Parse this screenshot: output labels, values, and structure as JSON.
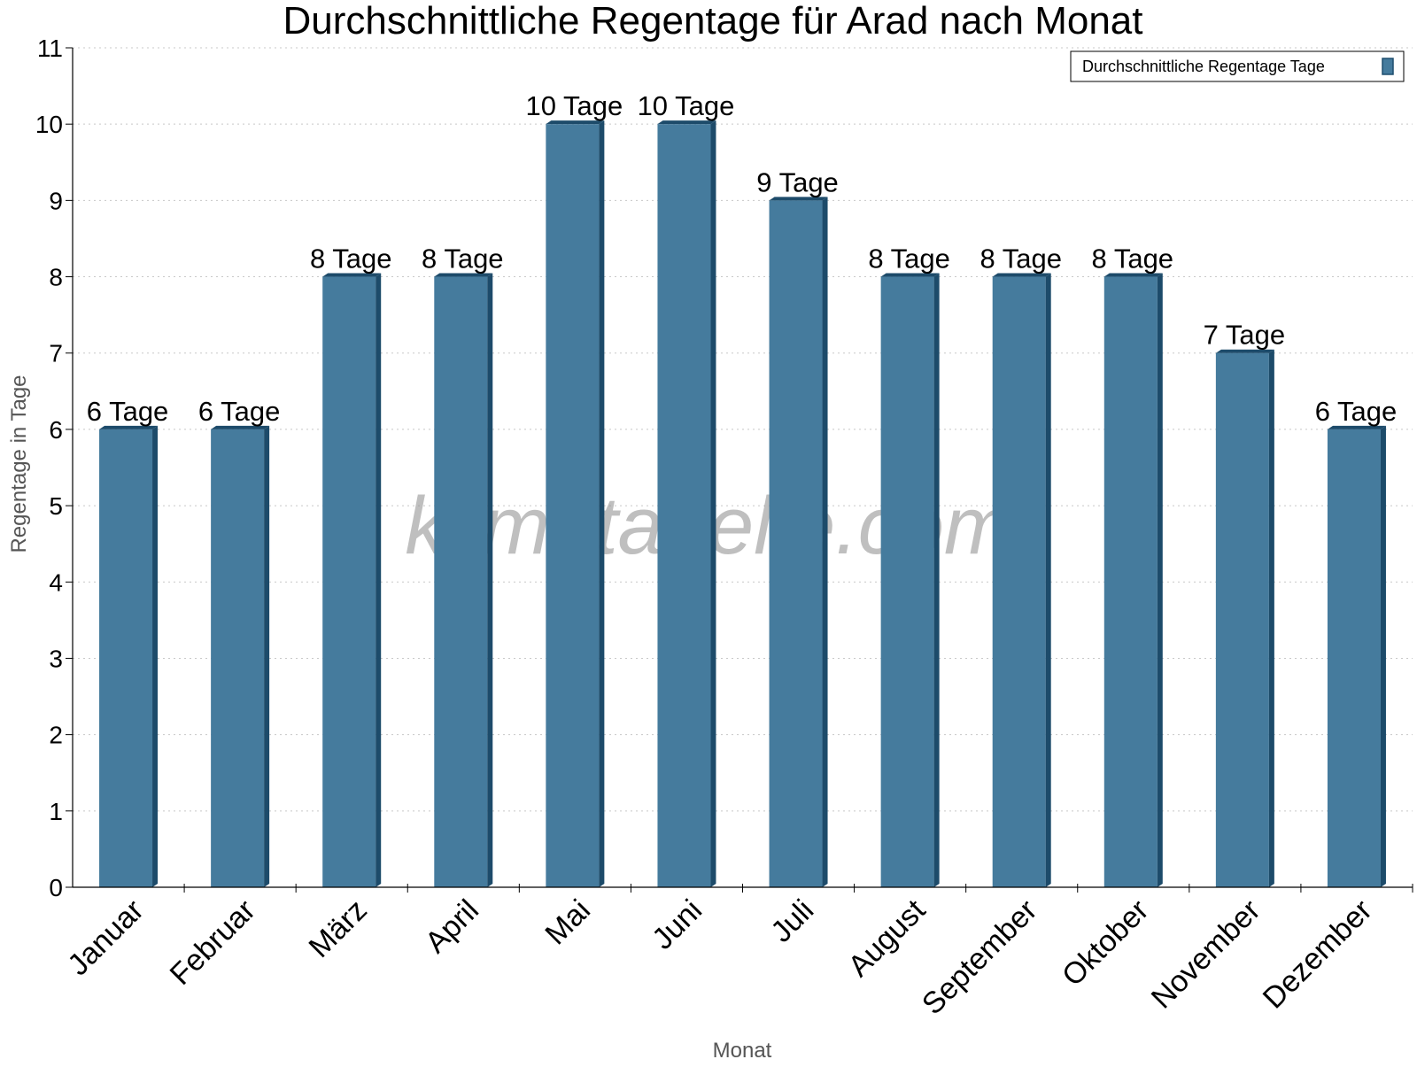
{
  "chart_data": {
    "type": "bar",
    "title": "Durchschnittliche Regentage für Arad nach Monat",
    "xlabel": "Monat",
    "ylabel": "Regentage in Tage",
    "ylim": [
      0,
      11
    ],
    "yticks": [
      "0",
      "1",
      "2",
      "3",
      "4",
      "5",
      "6",
      "7",
      "8",
      "9",
      "10",
      "11"
    ],
    "grid": "horizontal dotted",
    "legend_position": "top-right",
    "categories": [
      "Januar",
      "Februar",
      "März",
      "April",
      "Mai",
      "Juni",
      "Juli",
      "August",
      "September",
      "Oktober",
      "November",
      "Dezember"
    ],
    "series": [
      {
        "name": "Durchschnittliche Regentage Tage",
        "color": "#457b9d",
        "values": [
          6,
          6,
          8,
          8,
          10,
          10,
          9,
          8,
          8,
          8,
          7,
          6
        ],
        "labels": [
          "6 Tage",
          "6 Tage",
          "8 Tage",
          "8 Tage",
          "10 Tage",
          "10 Tage",
          "9 Tage",
          "8 Tage",
          "8 Tage",
          "8 Tage",
          "7 Tage",
          "6 Tage"
        ]
      }
    ],
    "watermark": "klimatabelle.com"
  }
}
